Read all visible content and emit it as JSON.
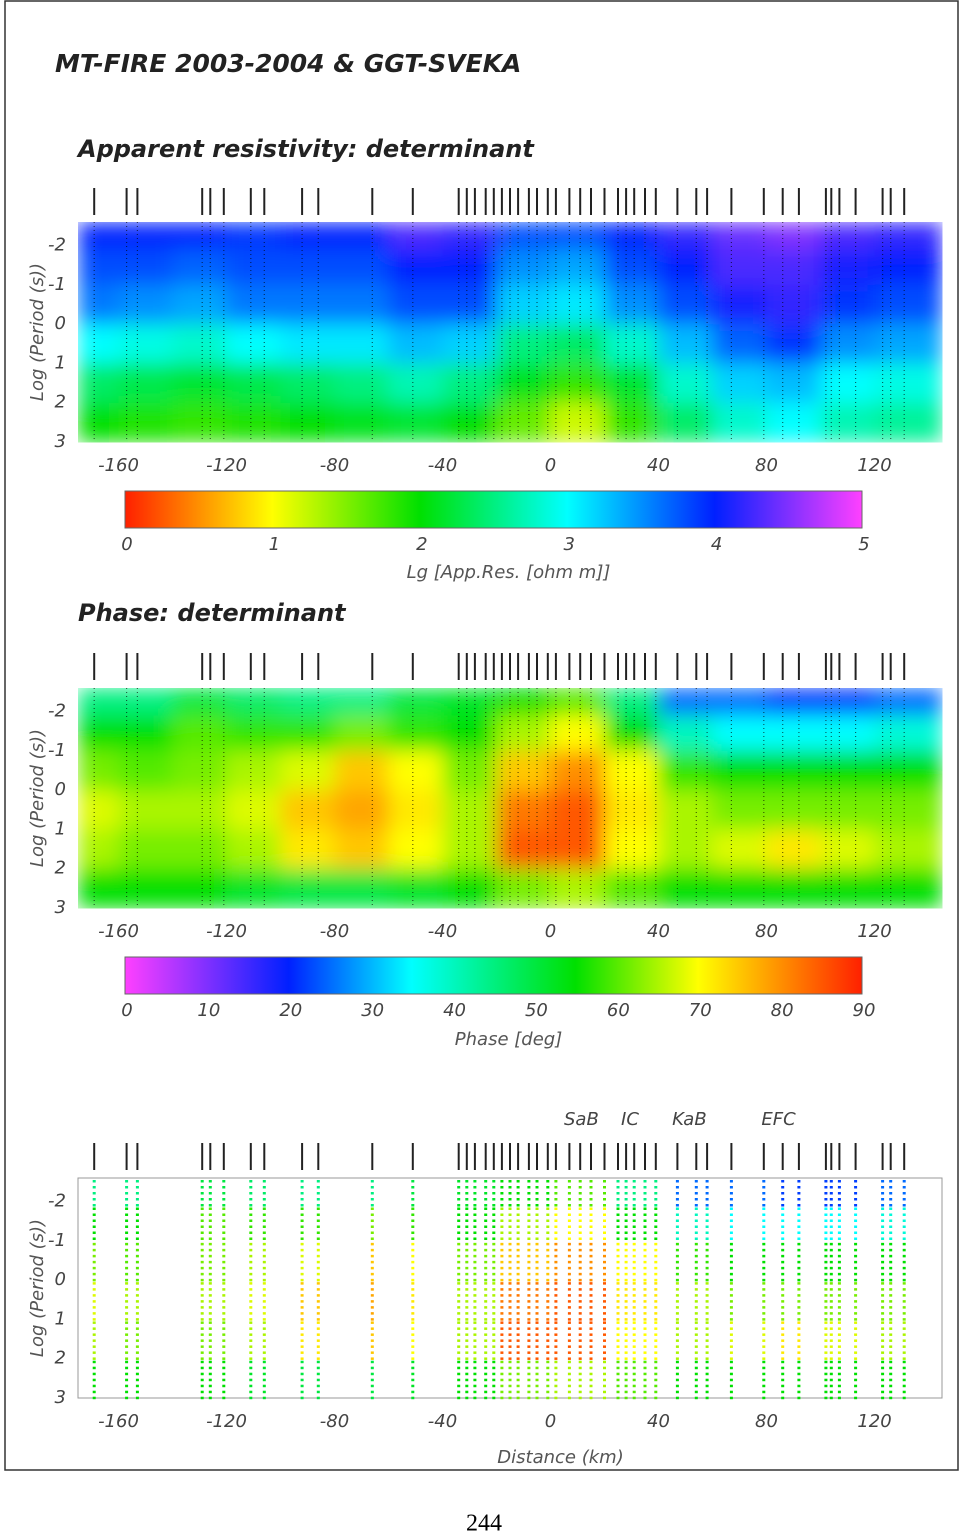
{
  "page": {
    "title": "MT-FIRE 2003-2004 & GGT-SVEKA",
    "page_number": "244"
  },
  "stations": [
    -169,
    -157,
    -153,
    -129,
    -126,
    -121,
    -111,
    -106,
    -92,
    -86,
    -66,
    -51,
    -34,
    -31,
    -28,
    -24,
    -21,
    -18,
    -15,
    -12,
    -8,
    -5,
    -1,
    2,
    7,
    11,
    15,
    20,
    25,
    28,
    31,
    35,
    39,
    47,
    54,
    58,
    67,
    79,
    86,
    92,
    102,
    104,
    107,
    113,
    123,
    126,
    131
  ],
  "chart_data": [
    {
      "type": "heatmap",
      "title": "Apparent resistivity:   determinant",
      "ylabel": "Log (Period (s))",
      "xlim": [
        -175,
        145
      ],
      "ylim": [
        -2.6,
        3
      ],
      "xticks": [
        -160,
        -120,
        -80,
        -40,
        0,
        40,
        80,
        120
      ],
      "yticks": [
        -2,
        -1,
        0,
        1,
        2,
        3
      ],
      "x": [
        -170,
        -150,
        -130,
        -110,
        -90,
        -70,
        -50,
        -30,
        -10,
        10,
        30,
        50,
        70,
        90,
        110,
        130
      ],
      "y": [
        -2.3,
        -1.5,
        -0.5,
        0.5,
        1.5,
        2.5
      ],
      "z": [
        [
          4,
          4,
          4,
          3.9,
          4,
          4,
          4.3,
          4.2,
          3.8,
          3.8,
          4,
          4.2,
          4.4,
          4.5,
          4.3,
          4.2
        ],
        [
          3.8,
          3.8,
          3.7,
          3.8,
          3.8,
          3.8,
          4,
          4,
          3.5,
          3.4,
          3.8,
          4,
          4.3,
          4.3,
          4.1,
          4
        ],
        [
          3.6,
          3.5,
          3.4,
          3.6,
          3.6,
          3.6,
          3.8,
          3.8,
          3.2,
          3.1,
          3.5,
          3.8,
          4.1,
          4.2,
          3.9,
          3.8
        ],
        [
          3,
          2.9,
          2.8,
          3,
          3.1,
          3.1,
          3.3,
          3.2,
          2.5,
          2.4,
          2.8,
          3.3,
          3.7,
          3.9,
          3.5,
          3.4
        ],
        [
          2.4,
          2.3,
          2.2,
          2.3,
          2.4,
          2.5,
          2.7,
          2.5,
          2.1,
          1.8,
          2.2,
          2.8,
          3.2,
          3.3,
          3,
          2.9
        ],
        [
          2,
          1.9,
          1.8,
          1.9,
          2,
          2.1,
          2.2,
          2,
          1.6,
          1.2,
          1.8,
          2.4,
          2.8,
          3,
          2.7,
          2.6
        ]
      ],
      "colorbar": {
        "label": "Lg [App.Res. [ohm m]]",
        "lim": [
          0,
          5
        ],
        "ticks": [
          0,
          1,
          2,
          3,
          4,
          5
        ],
        "colormap": [
          {
            "value": 0,
            "color": "#ff2000"
          },
          {
            "value": 1,
            "color": "#ffff00"
          },
          {
            "value": 2,
            "color": "#00e000"
          },
          {
            "value": 3,
            "color": "#00ffff"
          },
          {
            "value": 4,
            "color": "#0020ff"
          },
          {
            "value": 5,
            "color": "#ff40ff"
          }
        ]
      }
    },
    {
      "type": "heatmap",
      "title": "Phase:   determinant",
      "ylabel": "Log (Period (s))",
      "xlim": [
        -175,
        145
      ],
      "ylim": [
        -2.6,
        3
      ],
      "xticks": [
        -160,
        -120,
        -80,
        -40,
        0,
        40,
        80,
        120
      ],
      "yticks": [
        -2,
        -1,
        0,
        1,
        2,
        3
      ],
      "x": [
        -170,
        -150,
        -130,
        -110,
        -90,
        -70,
        -50,
        -30,
        -10,
        10,
        30,
        50,
        70,
        90,
        110,
        130
      ],
      "y": [
        -2.3,
        -1.5,
        -0.5,
        0.5,
        1.5,
        2.5
      ],
      "z": [
        [
          45,
          45,
          50,
          47,
          45,
          45,
          50,
          52,
          55,
          60,
          45,
          25,
          25,
          22,
          22,
          25
        ],
        [
          55,
          55,
          60,
          58,
          58,
          62,
          58,
          55,
          65,
          70,
          55,
          40,
          35,
          35,
          35,
          38
        ],
        [
          62,
          60,
          62,
          65,
          68,
          75,
          70,
          62,
          75,
          80,
          70,
          58,
          55,
          55,
          55,
          55
        ],
        [
          68,
          65,
          65,
          68,
          75,
          78,
          72,
          65,
          82,
          85,
          72,
          65,
          62,
          62,
          62,
          62
        ],
        [
          65,
          62,
          62,
          65,
          72,
          75,
          70,
          65,
          85,
          85,
          70,
          65,
          68,
          72,
          68,
          65
        ],
        [
          55,
          55,
          55,
          52,
          50,
          50,
          52,
          55,
          62,
          65,
          60,
          55,
          55,
          55,
          55,
          55
        ]
      ],
      "colorbar": {
        "label": "Phase [deg]",
        "lim": [
          0,
          90
        ],
        "ticks": [
          0,
          10,
          20,
          30,
          40,
          50,
          60,
          70,
          80,
          90
        ],
        "colormap": [
          {
            "value": 0,
            "color": "#ff40ff"
          },
          {
            "value": 20,
            "color": "#0020ff"
          },
          {
            "value": 35,
            "color": "#00ffff"
          },
          {
            "value": 55,
            "color": "#00e000"
          },
          {
            "value": 70,
            "color": "#ffff00"
          },
          {
            "value": 90,
            "color": "#ff2000"
          }
        ]
      }
    },
    {
      "type": "dots",
      "ylabel": "Log (Period (s))",
      "xlabel": "Distance (km)",
      "xlim": [
        -175,
        145
      ],
      "ylim": [
        -2.6,
        3
      ],
      "xticks": [
        -160,
        -120,
        -80,
        -40,
        0,
        40,
        80,
        120
      ],
      "yticks": [
        -2,
        -1,
        0,
        1,
        2,
        3
      ],
      "annotations": [
        {
          "text": "SaB",
          "x": 7
        },
        {
          "text": "IC",
          "x": 25
        },
        {
          "text": "KaB",
          "x": 47
        },
        {
          "text": "EFC",
          "x": 80
        }
      ]
    }
  ]
}
